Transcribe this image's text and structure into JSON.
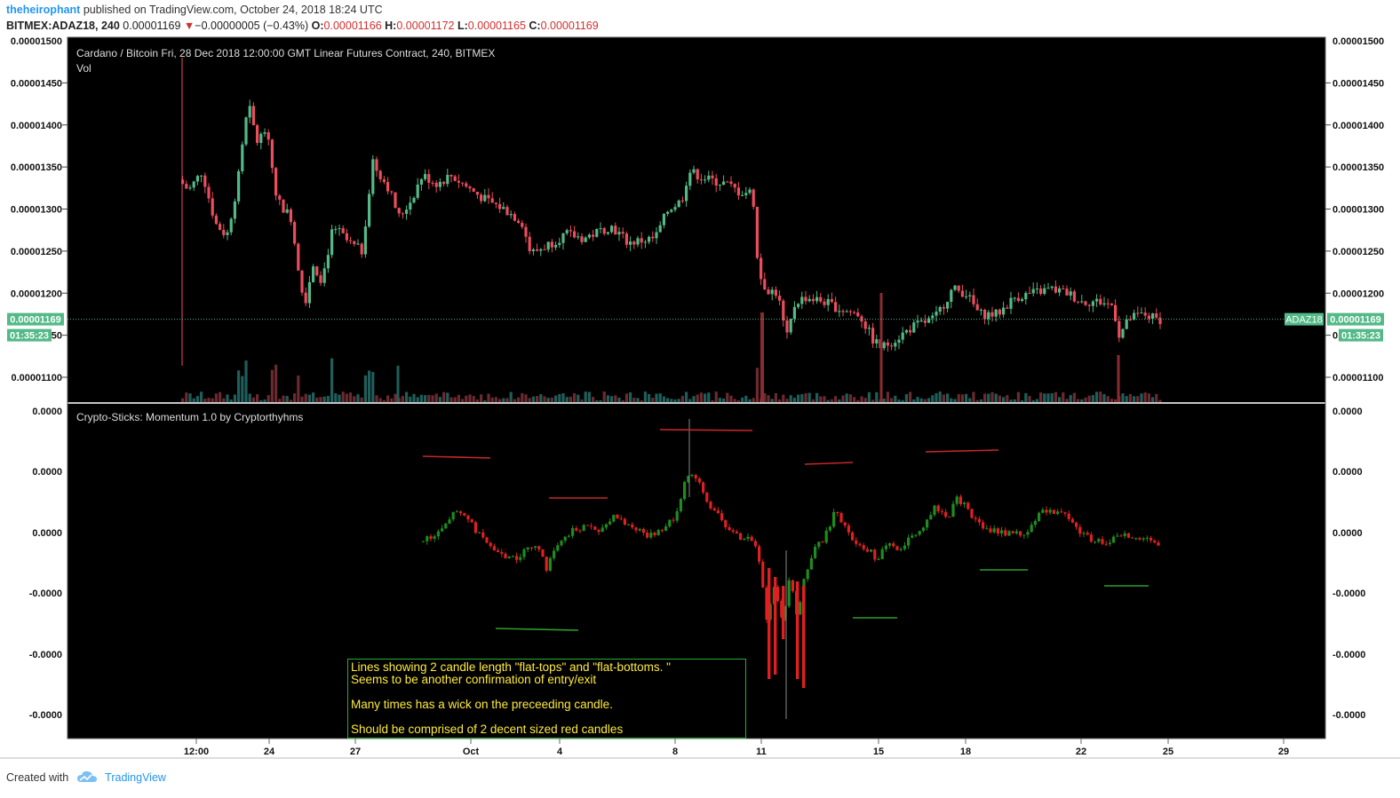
{
  "header": {
    "author": "theheirophant",
    "published": "published on TradingView.com, October 24, 2018 18:24 UTC"
  },
  "ticker": {
    "symbol": "BITMEX:ADAZ18, 240",
    "last": "0.00001169",
    "arrow": "▼",
    "change": "−0.00000005 (−0.43%)",
    "o_label": "O:",
    "o": "0.00001166",
    "h_label": "H:",
    "h": "0.00001172",
    "l_label": "L:",
    "l": "0.00001165",
    "c_label": "C:",
    "c": "0.00001169"
  },
  "chart_data": [
    {
      "type": "candlestick",
      "title": "Cardano / Bitcoin Fri, 28 Dec 2018 12:00:00 GMT Linear Futures Contract, 240, BITMEX",
      "volume_label": "Vol",
      "y_ticks": [
        "0.00001500",
        "0.00001450",
        "0.00001400",
        "0.00001350",
        "0.00001300",
        "0.00001250",
        "0.00001200",
        "0.00001150",
        "0.00001100"
      ],
      "y_tick_values": [
        1.5e-05,
        1.45e-05,
        1.4e-05,
        1.35e-05,
        1.3e-05,
        1.25e-05,
        1.2e-05,
        1.15e-05,
        1.1e-05
      ],
      "ylim": [
        1.07e-05,
        1.5e-05
      ],
      "x_ticks": [
        "12:00",
        "24",
        "27",
        "Oct",
        "4",
        "8",
        "11",
        "15",
        "18",
        "22",
        "25",
        "29"
      ],
      "current_price": "0.00001169",
      "current_price_value": 1.169e-05,
      "countdown": "01:35:23",
      "symbol_tag": "ADAZ18",
      "colors": {
        "up": "#53b987",
        "down": "#eb4d5c",
        "bg": "#000000",
        "axis_text": "#000000"
      }
    },
    {
      "type": "candlestick",
      "title": "Crypto-Sticks: Momentum 1.0 by Cryptorthyhms",
      "y_ticks": [
        "0.0000",
        "0.0000",
        "0.0000",
        "-0.0000",
        "-0.0000",
        "-0.0000"
      ],
      "colors": {
        "up": "#1e8c1e",
        "down": "#e02020",
        "line_red": "#c62828",
        "line_green": "#2e9e2e"
      }
    }
  ],
  "note": {
    "line1": "Lines showing 2 candle length \"flat-tops\" and \"flat-bottoms. \"",
    "line2": "Seems to be another confirmation of entry/exit",
    "line3": "Many times has a wick on the preceeding candle.",
    "line4": "Should be comprised of 2 decent sized red candles"
  },
  "footer": {
    "created": "Created with",
    "brand": "TradingView"
  }
}
